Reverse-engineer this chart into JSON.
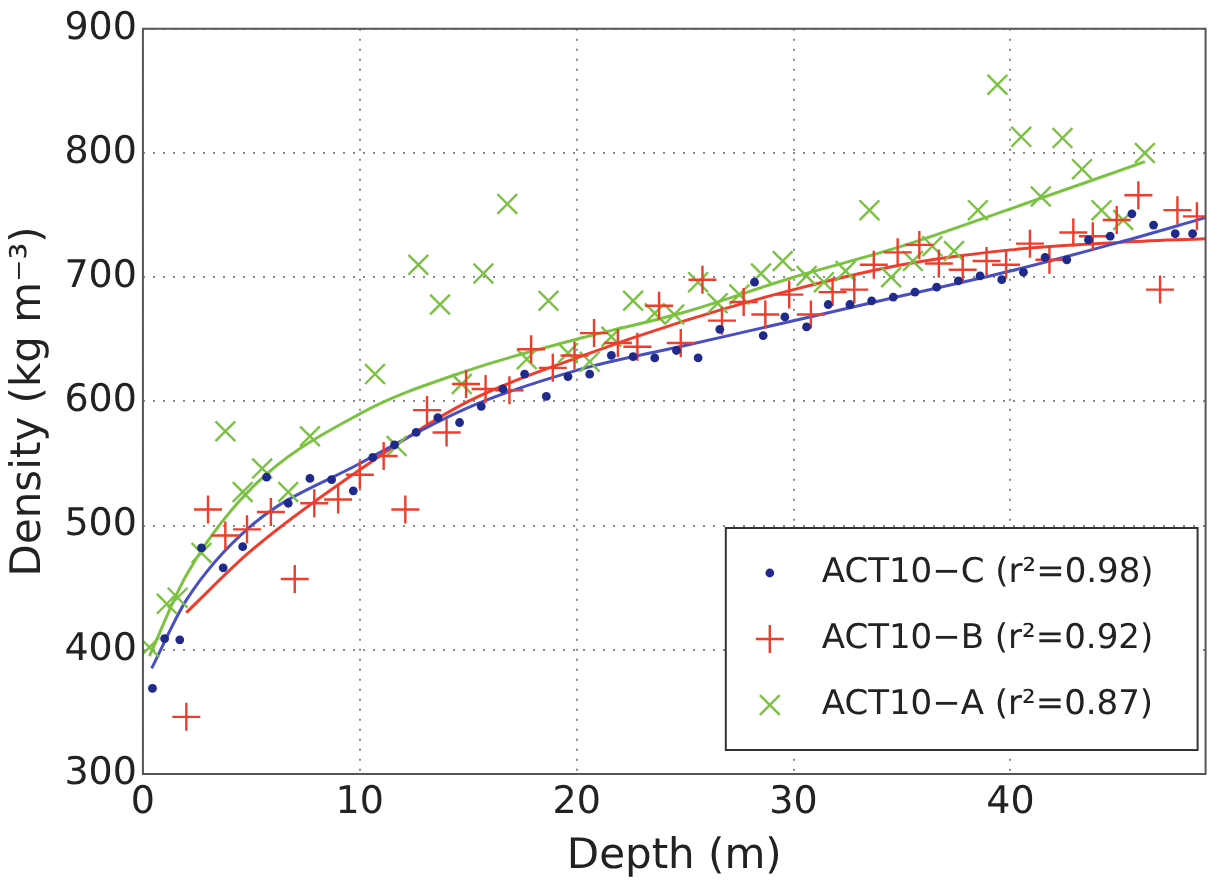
{
  "chart_data": {
    "type": "scatter",
    "xlabel": "Depth (m)",
    "ylabel": "Density (kg m⁻³)",
    "xlim": [
      0,
      49
    ],
    "xticks": [
      0,
      10,
      20,
      30,
      40
    ],
    "ylim": [
      300,
      900
    ],
    "yticks": [
      300,
      400,
      500,
      600,
      700,
      800,
      900
    ],
    "grid": true,
    "legend": "bottom right",
    "series": [
      {
        "name": "ACT10−C (r²=0.98)",
        "color": "#1f2a8a",
        "marker": "circle",
        "x": [
          0.44,
          1.0,
          1.7,
          2.7,
          3.7,
          4.6,
          5.7,
          6.7,
          7.7,
          8.7,
          9.7,
          10.6,
          11.6,
          12.6,
          13.6,
          14.6,
          15.6,
          16.6,
          17.6,
          18.6,
          19.6,
          20.6,
          21.6,
          22.6,
          23.6,
          24.6,
          25.6,
          26.6,
          28.2,
          28.6,
          29.6,
          30.6,
          31.6,
          32.6,
          33.6,
          34.6,
          35.6,
          36.6,
          37.6,
          38.6,
          39.6,
          40.6,
          41.6,
          42.6,
          43.6,
          44.6,
          45.6,
          46.6,
          47.6,
          48.4
        ],
        "values": [
          369,
          409,
          408,
          482,
          466,
          483,
          539,
          518,
          538,
          537,
          528,
          555,
          565,
          575,
          587,
          583,
          596,
          610,
          622,
          604,
          620,
          622,
          637,
          636,
          635,
          641,
          635,
          658,
          696,
          653,
          668,
          660,
          678,
          678,
          681,
          684,
          688,
          692,
          697,
          701,
          698,
          704,
          716,
          714,
          730,
          733,
          751,
          742,
          735,
          735
        ]
      },
      {
        "name": "ACT10−B (r²=0.92)",
        "color": "#f03c2c",
        "marker": "cross",
        "x": [
          2.0,
          3.0,
          3.8,
          4.8,
          5.9,
          7.0,
          7.9,
          9.0,
          10.0,
          11.1,
          12.1,
          13.1,
          14.0,
          14.9,
          15.8,
          16.9,
          17.9,
          18.9,
          19.9,
          20.8,
          21.9,
          22.8,
          23.8,
          24.8,
          25.8,
          26.7,
          27.7,
          28.7,
          29.8,
          30.8,
          31.8,
          32.8,
          33.7,
          34.8,
          35.8,
          36.7,
          37.8,
          38.9,
          39.8,
          40.9,
          41.8,
          42.9,
          43.8,
          44.9,
          45.9,
          46.9,
          47.7,
          48.6
        ],
        "values": [
          346,
          513,
          492,
          497,
          511,
          457,
          518,
          521,
          541,
          556,
          513,
          593,
          575,
          614,
          610,
          609,
          642,
          627,
          637,
          655,
          647,
          644,
          677,
          647,
          698,
          665,
          680,
          670,
          686,
          670,
          688,
          690,
          710,
          720,
          726,
          711,
          706,
          713,
          710,
          727,
          714,
          736,
          733,
          746,
          766,
          690,
          754,
          749
        ]
      },
      {
        "name": "ACT10−A (r²=0.87)",
        "color": "#7cc242",
        "marker": "x",
        "x": [
          0.3,
          1.1,
          1.6,
          2.7,
          3.8,
          4.6,
          5.5,
          6.7,
          7.7,
          10.7,
          11.7,
          12.7,
          13.7,
          14.7,
          15.7,
          16.8,
          17.7,
          18.7,
          19.6,
          20.6,
          21.6,
          22.6,
          23.6,
          24.5,
          25.6,
          26.5,
          27.5,
          28.5,
          29.5,
          30.6,
          31.4,
          32.4,
          33.5,
          34.5,
          35.5,
          36.4,
          37.4,
          38.5,
          39.4,
          40.5,
          41.4,
          42.4,
          43.3,
          44.2,
          45.2,
          46.2
        ],
        "values": [
          402,
          437,
          442,
          478,
          576,
          527,
          546,
          527,
          572,
          622,
          564,
          710,
          678,
          614,
          703,
          759,
          634,
          681,
          639,
          632,
          652,
          681,
          671,
          670,
          696,
          679,
          686,
          703,
          713,
          701,
          696,
          705,
          754,
          700,
          713,
          725,
          721,
          754,
          855,
          813,
          765,
          812,
          787,
          754,
          746,
          800
        ]
      },
      {
        "type": "line",
        "color": "#4a4fc0",
        "x": [
          0.4,
          2,
          5,
          10,
          15,
          20,
          25,
          30,
          35,
          40,
          45,
          49
        ],
        "values": [
          385,
          440,
          500,
          550,
          595,
          625,
          645,
          665,
          685,
          705,
          728,
          748
        ]
      },
      {
        "type": "line",
        "color": "#f03c2c",
        "x": [
          2,
          5,
          10,
          15,
          20,
          25,
          30,
          35,
          40,
          45,
          49
        ],
        "values": [
          430,
          480,
          545,
          600,
          635,
          665,
          690,
          710,
          722,
          728,
          731
        ]
      },
      {
        "type": "line",
        "color": "#7cc242",
        "x": [
          0.3,
          2,
          5,
          10,
          15,
          20,
          25,
          30,
          35,
          40,
          46.2
        ],
        "values": [
          395,
          460,
          530,
          590,
          625,
          650,
          672,
          700,
          725,
          755,
          793
        ]
      }
    ]
  }
}
